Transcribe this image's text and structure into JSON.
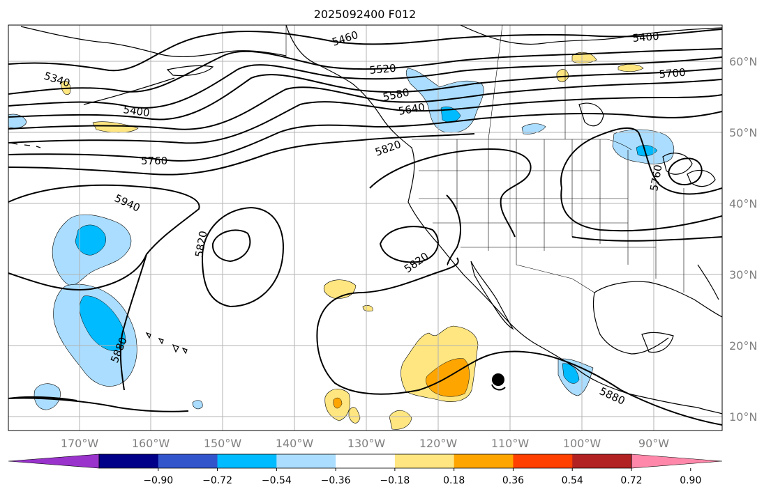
{
  "title": "2025092400 F012",
  "longitude_labels": [
    "170°W",
    "160°W",
    "150°W",
    "140°W",
    "130°W",
    "120°W",
    "110°W",
    "100°W",
    "90°W"
  ],
  "latitude_labels": [
    "60°N",
    "50°N",
    "40°N",
    "30°N",
    "20°N",
    "10°N"
  ],
  "colorbar": {
    "tick_labels": [
      "−0.90",
      "−0.72",
      "−0.54",
      "−0.36",
      "−0.18",
      "0.18",
      "0.36",
      "0.54",
      "0.72",
      "0.90"
    ],
    "colors": [
      "#9933cc",
      "#000088",
      "#3355cc",
      "#00bbff",
      "#aaddff",
      "#ffffff",
      "#ffe680",
      "#ffa500",
      "#ff4000",
      "#b22222",
      "#ff88aa"
    ]
  },
  "contour_labels": [
    "5460",
    "5520",
    "5580",
    "5640",
    "5340",
    "5400",
    "5760",
    "5820",
    "5940",
    "5820",
    "5820",
    "5880",
    "5880",
    "5400",
    "5700",
    "5760"
  ],
  "colors": {
    "land_line": "#000000",
    "height_contour": "#000000",
    "grid": "#b3b3b3",
    "axis_label": "#808080"
  }
}
